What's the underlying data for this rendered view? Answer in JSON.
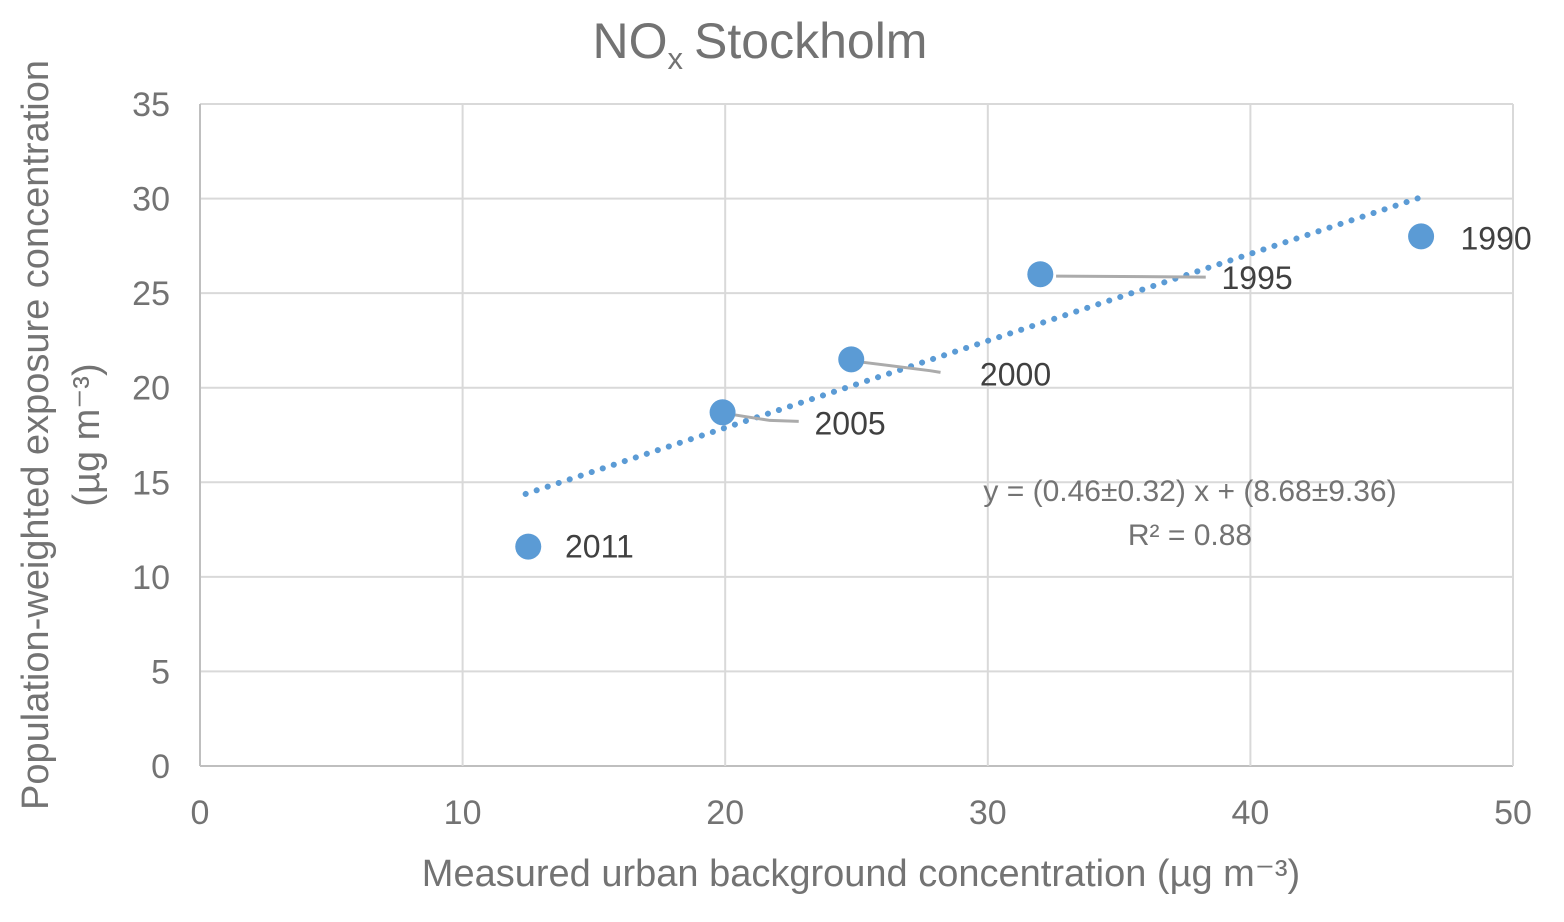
{
  "chart_data": {
    "type": "scatter",
    "title": {
      "prefix": "NO",
      "subscript": "x",
      "suffix": "Stockholm"
    },
    "xlabel": "Measured urban background concentration (µg m⁻³)",
    "ylabel_line1": "Population-weighted exposure concentration",
    "ylabel_line2": "(µg m⁻³)",
    "xlim": [
      0,
      50
    ],
    "ylim": [
      0,
      35
    ],
    "xticks": [
      0,
      10,
      20,
      30,
      40,
      50
    ],
    "yticks": [
      0,
      5,
      10,
      15,
      20,
      25,
      30,
      35
    ],
    "grid": true,
    "legend": null,
    "points": [
      {
        "label": "1990",
        "x": 46.5,
        "y": 28.0,
        "label_x": 48.0,
        "label_y": 27.9,
        "leader": null
      },
      {
        "label": "1995",
        "x": 32.0,
        "y": 26.0,
        "label_x": 38.9,
        "label_y": 25.8,
        "leader": [
          [
            32.6,
            25.9
          ],
          [
            38.3,
            25.85
          ]
        ]
      },
      {
        "label": "2000",
        "x": 24.8,
        "y": 21.5,
        "label_x": 29.7,
        "label_y": 20.7,
        "leader": [
          [
            25.1,
            21.37
          ],
          [
            27.8,
            20.9
          ],
          [
            28.2,
            20.81
          ]
        ]
      },
      {
        "label": "2005",
        "x": 19.9,
        "y": 18.7,
        "label_x": 23.4,
        "label_y": 18.1,
        "leader": [
          [
            20.1,
            18.62
          ],
          [
            21.7,
            18.27
          ],
          [
            22.8,
            18.22
          ]
        ]
      },
      {
        "label": "2011",
        "x": 12.5,
        "y": 11.6,
        "label_x": 13.9,
        "label_y": 11.6,
        "leader": null
      }
    ],
    "trendline": {
      "style": "dotted",
      "slope": 0.46,
      "intercept": 8.68,
      "x_start": 12.4,
      "x_end": 46.4,
      "equation_label": "y = (0.46±0.32)  x + (8.68±9.36)",
      "r2_label": "R² = 0.88"
    },
    "colors": {
      "marker": "#5B9BD5",
      "trendline": "#5B9BD5",
      "gridline": "#D9D9D9",
      "axis_line": "#BFBFBF",
      "leader_line": "#ABABAB",
      "tick_text": "#737373",
      "title_text": "#737373",
      "axis_title_text": "#737373",
      "equation_text": "#737373",
      "point_label_text": "#404040"
    }
  }
}
